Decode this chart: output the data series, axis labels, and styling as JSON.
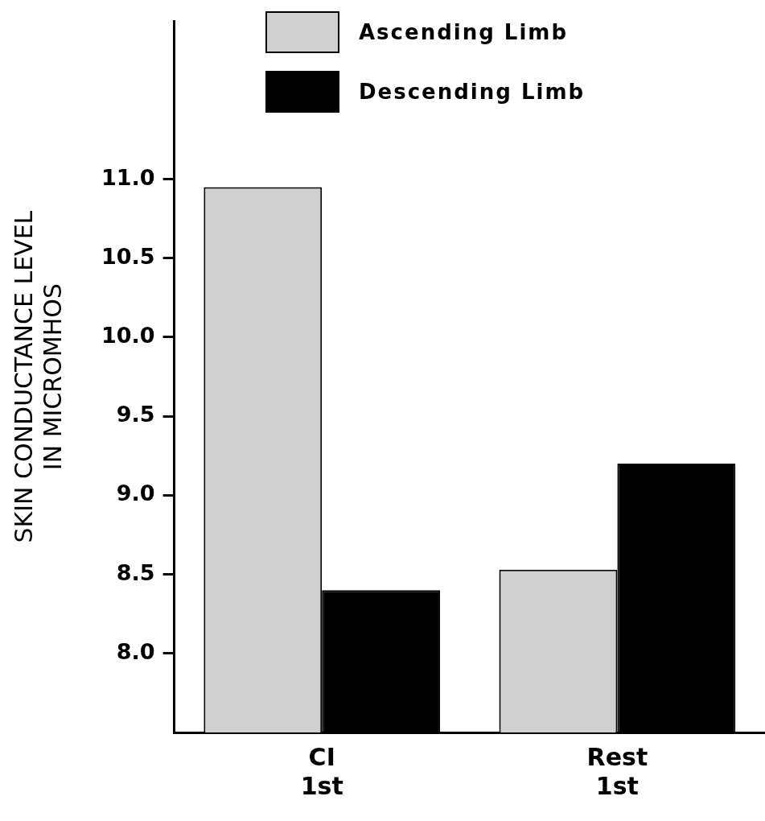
{
  "chart_data": {
    "type": "bar",
    "ylabel": "SKIN CONDUCTANCE LEVEL\nIN MICROMHOS",
    "categories": [
      "CI\n1st",
      "Rest\n1st"
    ],
    "series": [
      {
        "name": "Ascending Limb",
        "color": "#d0d0d0",
        "values": [
          10.95,
          8.53
        ]
      },
      {
        "name": "Descending Limb",
        "color": "#000000",
        "values": [
          8.4,
          9.2
        ]
      }
    ],
    "ylim": [
      7.5,
      12.0
    ],
    "yticks": [
      {
        "value": 8,
        "label": "8.0"
      },
      {
        "value": 8.5,
        "label": "8.5"
      },
      {
        "value": 9,
        "label": "9.0"
      },
      {
        "value": 9.5,
        "label": "9.5"
      },
      {
        "value": 10,
        "label": "10.0"
      },
      {
        "value": 10.5,
        "label": "10.5"
      },
      {
        "value": 11,
        "label": "11.0"
      }
    ],
    "grid": false,
    "legend": "top left"
  }
}
